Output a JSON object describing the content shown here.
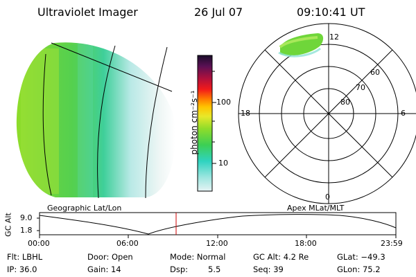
{
  "header": {
    "title": "Ultraviolet Imager",
    "date": "26 Jul 07",
    "time": "09:10:41 UT"
  },
  "colorbar": {
    "unit_label": "photon cm⁻²s⁻¹",
    "ticks": [
      "100",
      "10"
    ]
  },
  "polar": {
    "mlt_labels": [
      "12",
      "18",
      "6",
      "0"
    ],
    "mlat_labels": [
      "60",
      "70",
      "80"
    ]
  },
  "map_labels": {
    "left": "Geographic Lat/Lon",
    "right": "Apex MLat/MLT"
  },
  "gc_alt_plot": {
    "axis_label": "GC Alt",
    "y_ticks": [
      "9.0",
      "1.8"
    ],
    "x_ticks": [
      "00:00",
      "06:00",
      "12:00",
      "18:00",
      "23:59"
    ],
    "curve_color": "#000000",
    "current_time_color": "#cc0000"
  },
  "info": {
    "flt": "Flt: LBHL",
    "ip": "IP: 36.0",
    "door": "Door: Open",
    "gain": "Gain: 14",
    "mode": "Mode: Normal",
    "dsp_label": "Dsp:",
    "dsp_value": "5.5",
    "gc_alt": "GC Alt: 4.2 Re",
    "seq": "Seq: 39",
    "glat": "GLat: −49.3",
    "glon": "GLon: 75.2"
  },
  "colors": {
    "aurora_bright": "#7ad63a",
    "aurora_mid": "#33cc33",
    "aurora_faint": "#aee5df",
    "background": "#ffffff"
  }
}
